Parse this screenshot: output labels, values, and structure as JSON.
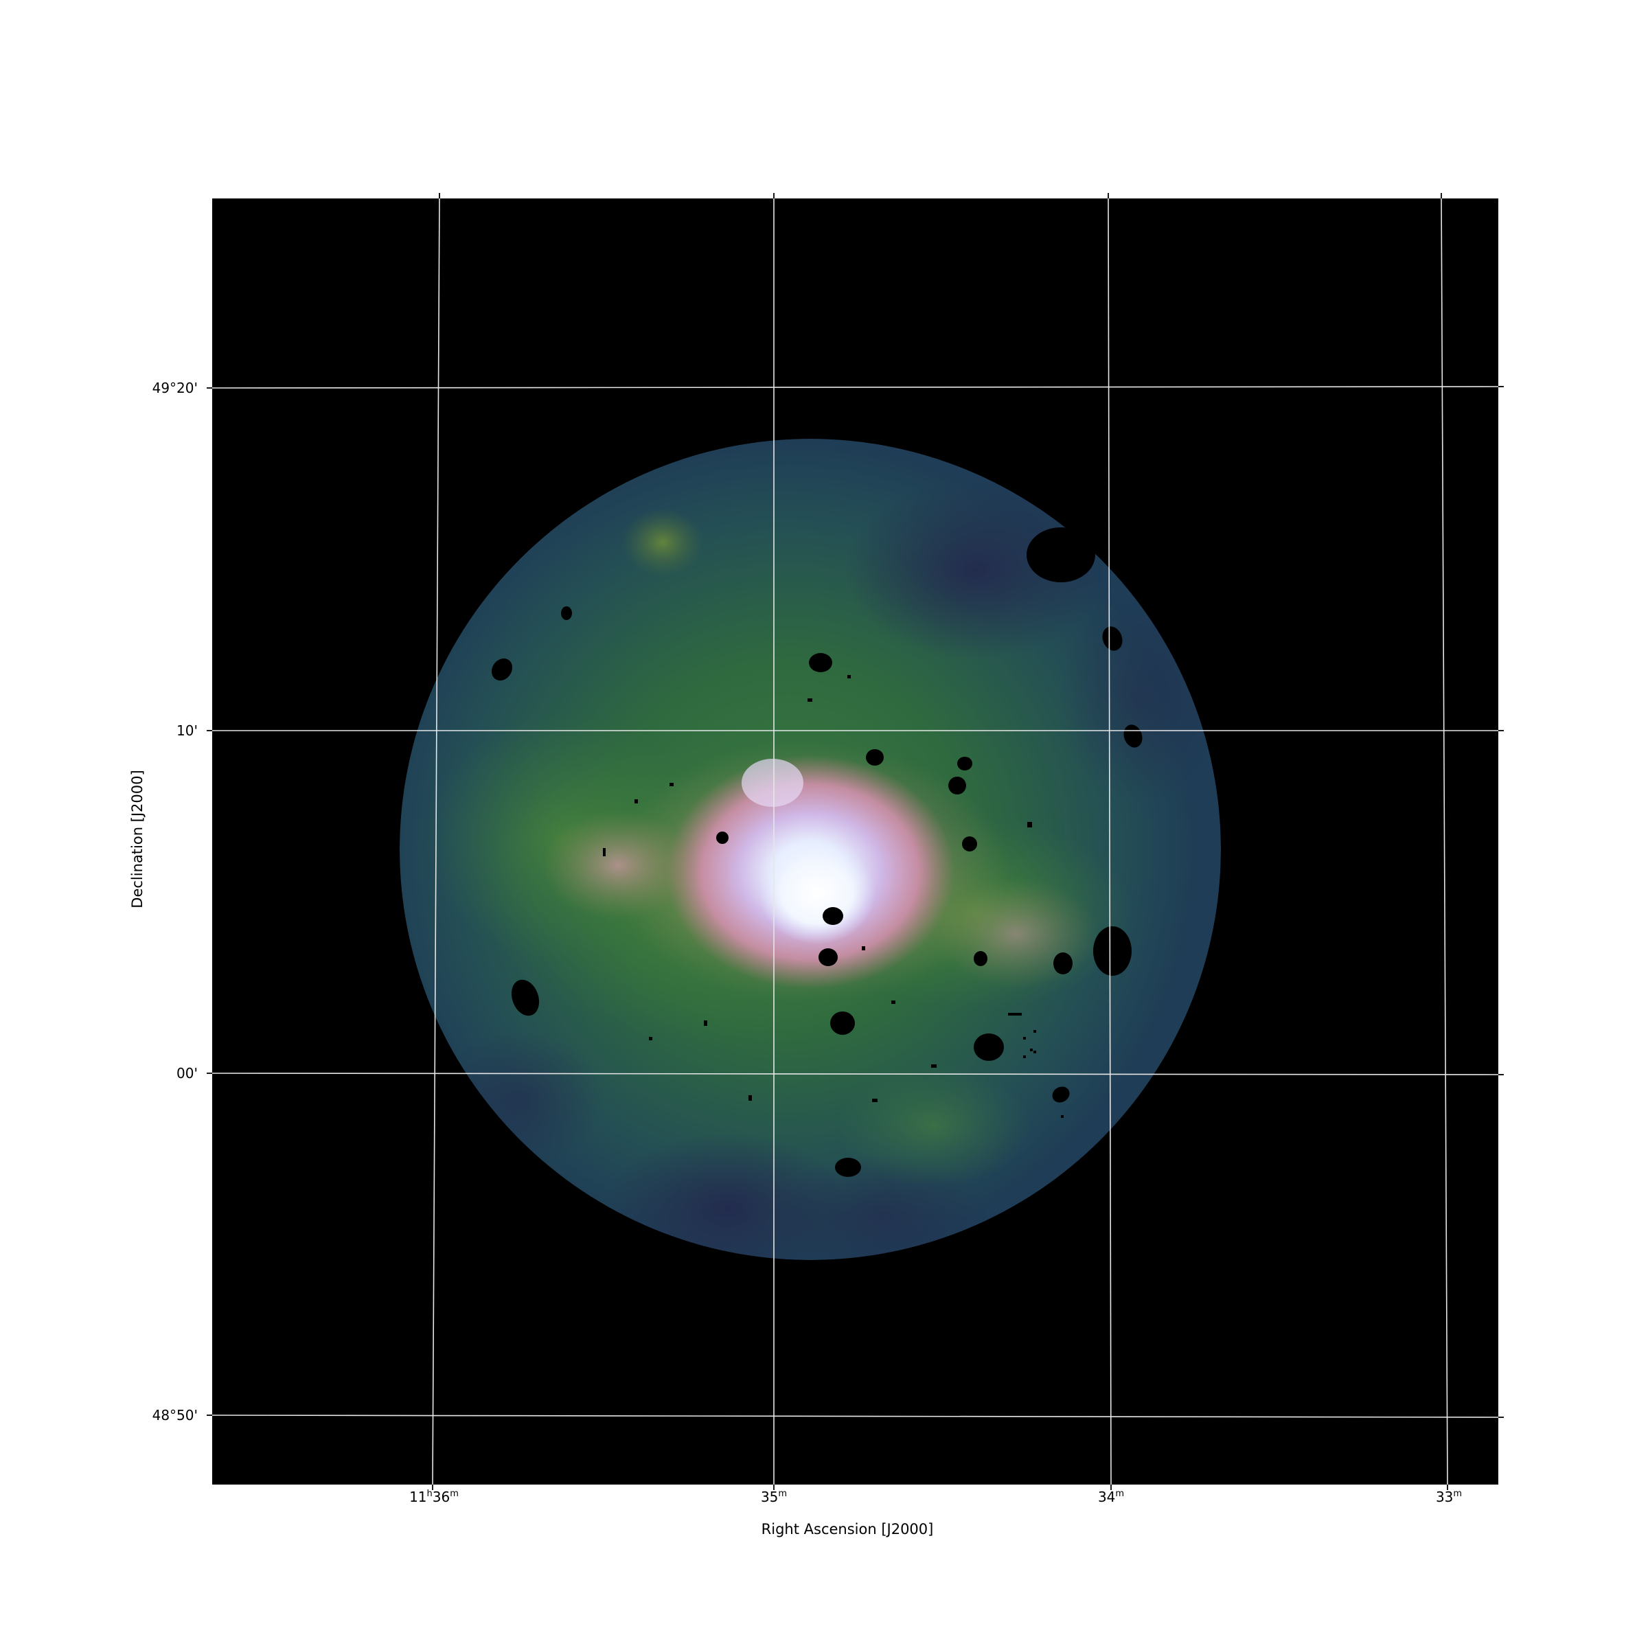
{
  "figure": {
    "x_axis_label": "Right Ascension [J2000]",
    "y_axis_label": "Declination [J2000]",
    "x_ticks": [
      {
        "main": "11",
        "h": "h",
        "minutes": "36",
        "m": "m"
      },
      {
        "main": "35",
        "m": "m"
      },
      {
        "main": "34",
        "m": "m"
      },
      {
        "main": "33",
        "m": "m"
      }
    ],
    "y_ticks": [
      "49°20'",
      "10'",
      "00'",
      "48°50'"
    ],
    "colormap": "cubehelix",
    "colors": {
      "frame_background": "#000000",
      "grid": "#e6e6e6",
      "edge": "#1f3d56",
      "mid": "#2f6a3a",
      "bright": "#d898b4",
      "peak": "#ffffff"
    }
  }
}
